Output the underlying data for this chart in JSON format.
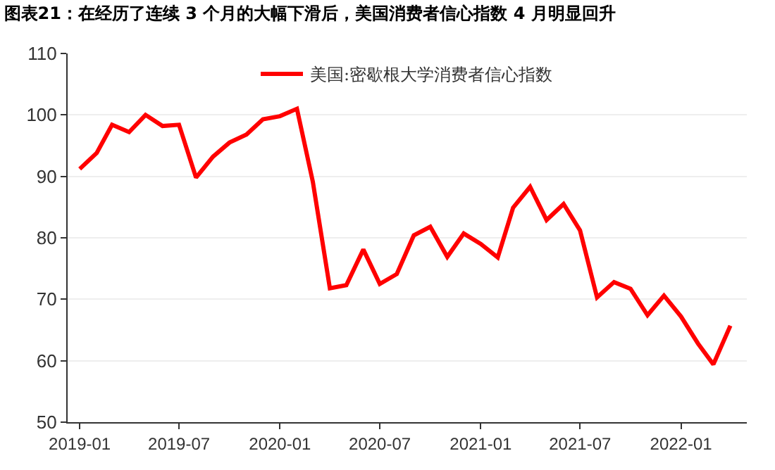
{
  "chart_data": {
    "type": "line",
    "title": "图表21：在经历了连续 3 个月的大幅下滑后，美国消费者信心指数 4 月明显回升",
    "x": [
      "2019-01",
      "2019-02",
      "2019-03",
      "2019-04",
      "2019-05",
      "2019-06",
      "2019-07",
      "2019-08",
      "2019-09",
      "2019-10",
      "2019-11",
      "2019-12",
      "2020-01",
      "2020-02",
      "2020-03",
      "2020-04",
      "2020-05",
      "2020-06",
      "2020-07",
      "2020-08",
      "2020-09",
      "2020-10",
      "2020-11",
      "2020-12",
      "2021-01",
      "2021-02",
      "2021-03",
      "2021-04",
      "2021-05",
      "2021-06",
      "2021-07",
      "2021-08",
      "2021-09",
      "2021-10",
      "2021-11",
      "2021-12",
      "2022-01",
      "2022-02",
      "2022-03",
      "2022-04"
    ],
    "series": [
      {
        "name": "美国:密歇根大学消费者信心指数",
        "color": "#ff0000",
        "values": [
          91.2,
          93.8,
          98.4,
          97.2,
          100.0,
          98.2,
          98.4,
          89.8,
          93.2,
          95.5,
          96.8,
          99.3,
          99.8,
          101.0,
          89.1,
          71.8,
          72.3,
          78.1,
          72.5,
          74.1,
          80.4,
          81.8,
          76.9,
          80.7,
          79.0,
          76.8,
          84.9,
          88.3,
          82.9,
          85.5,
          81.2,
          70.3,
          72.8,
          71.7,
          67.4,
          70.6,
          67.2,
          62.8,
          59.4,
          65.7
        ]
      }
    ],
    "xlim": [
      "2018-12-10",
      "2022-05-01"
    ],
    "xticks": [
      {
        "value": "2019-01",
        "label": "2019-01"
      },
      {
        "value": "2019-07",
        "label": "2019-07"
      },
      {
        "value": "2020-01",
        "label": "2020-01"
      },
      {
        "value": "2020-07",
        "label": "2020-07"
      },
      {
        "value": "2021-01",
        "label": "2021-01"
      },
      {
        "value": "2021-07",
        "label": "2021-07"
      },
      {
        "value": "2022-01",
        "label": "2022-01"
      }
    ],
    "ylim": [
      50,
      110
    ],
    "yticks": [
      50,
      60,
      70,
      80,
      90,
      100,
      110
    ],
    "grid": "y",
    "legend": "top",
    "marker": "none",
    "line_style": "solid"
  }
}
